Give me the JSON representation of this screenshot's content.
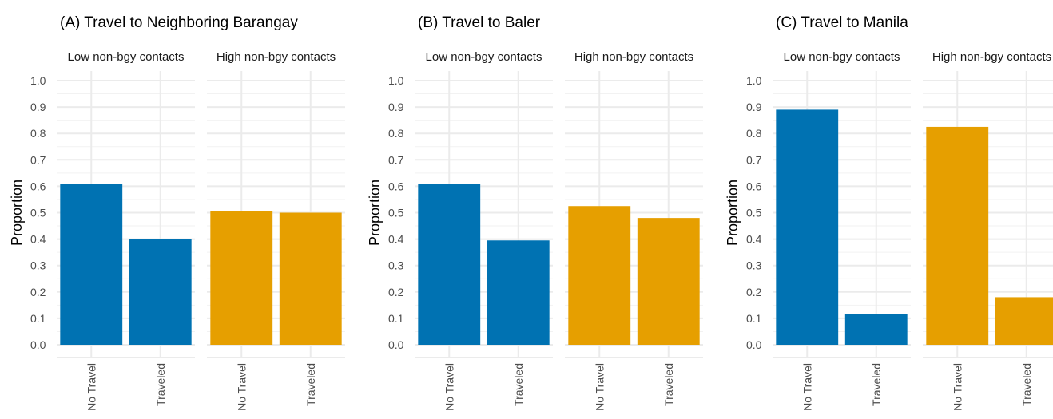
{
  "chart_data": [
    {
      "type": "bar",
      "title": "(A) Travel to Neighboring Barangay",
      "ylabel": "Proportion",
      "ylim": [
        0,
        1.0
      ],
      "yticks": [
        "0.0",
        "0.1",
        "0.2",
        "0.3",
        "0.4",
        "0.5",
        "0.6",
        "0.7",
        "0.8",
        "0.9",
        "1.0"
      ],
      "grid": true,
      "facets": [
        {
          "label": "Low non-bgy contacts",
          "color": "#0072B2",
          "categories": [
            "No Travel",
            "Traveled"
          ],
          "values": [
            0.61,
            0.4
          ]
        },
        {
          "label": "High non-bgy contacts",
          "color": "#E69F00",
          "categories": [
            "No Travel",
            "Traveled"
          ],
          "values": [
            0.505,
            0.5
          ]
        }
      ]
    },
    {
      "type": "bar",
      "title": "(B) Travel to Baler",
      "ylabel": "Proportion",
      "ylim": [
        0,
        1.0
      ],
      "yticks": [
        "0.0",
        "0.1",
        "0.2",
        "0.3",
        "0.4",
        "0.5",
        "0.6",
        "0.7",
        "0.8",
        "0.9",
        "1.0"
      ],
      "grid": true,
      "facets": [
        {
          "label": "Low non-bgy contacts",
          "color": "#0072B2",
          "categories": [
            "No Travel",
            "Traveled"
          ],
          "values": [
            0.61,
            0.395
          ]
        },
        {
          "label": "High non-bgy contacts",
          "color": "#E69F00",
          "categories": [
            "No Travel",
            "Traveled"
          ],
          "values": [
            0.525,
            0.48
          ]
        }
      ]
    },
    {
      "type": "bar",
      "title": "(C) Travel to Manila",
      "ylabel": "Proportion",
      "ylim": [
        0,
        1.0
      ],
      "yticks": [
        "0.0",
        "0.1",
        "0.2",
        "0.3",
        "0.4",
        "0.5",
        "0.6",
        "0.7",
        "0.8",
        "0.9",
        "1.0"
      ],
      "grid": true,
      "facets": [
        {
          "label": "Low non-bgy contacts",
          "color": "#0072B2",
          "categories": [
            "No Travel",
            "Traveled"
          ],
          "values": [
            0.89,
            0.115
          ]
        },
        {
          "label": "High non-bgy contacts",
          "color": "#E69F00",
          "categories": [
            "No Travel",
            "Traveled"
          ],
          "values": [
            0.825,
            0.18
          ]
        }
      ]
    }
  ]
}
